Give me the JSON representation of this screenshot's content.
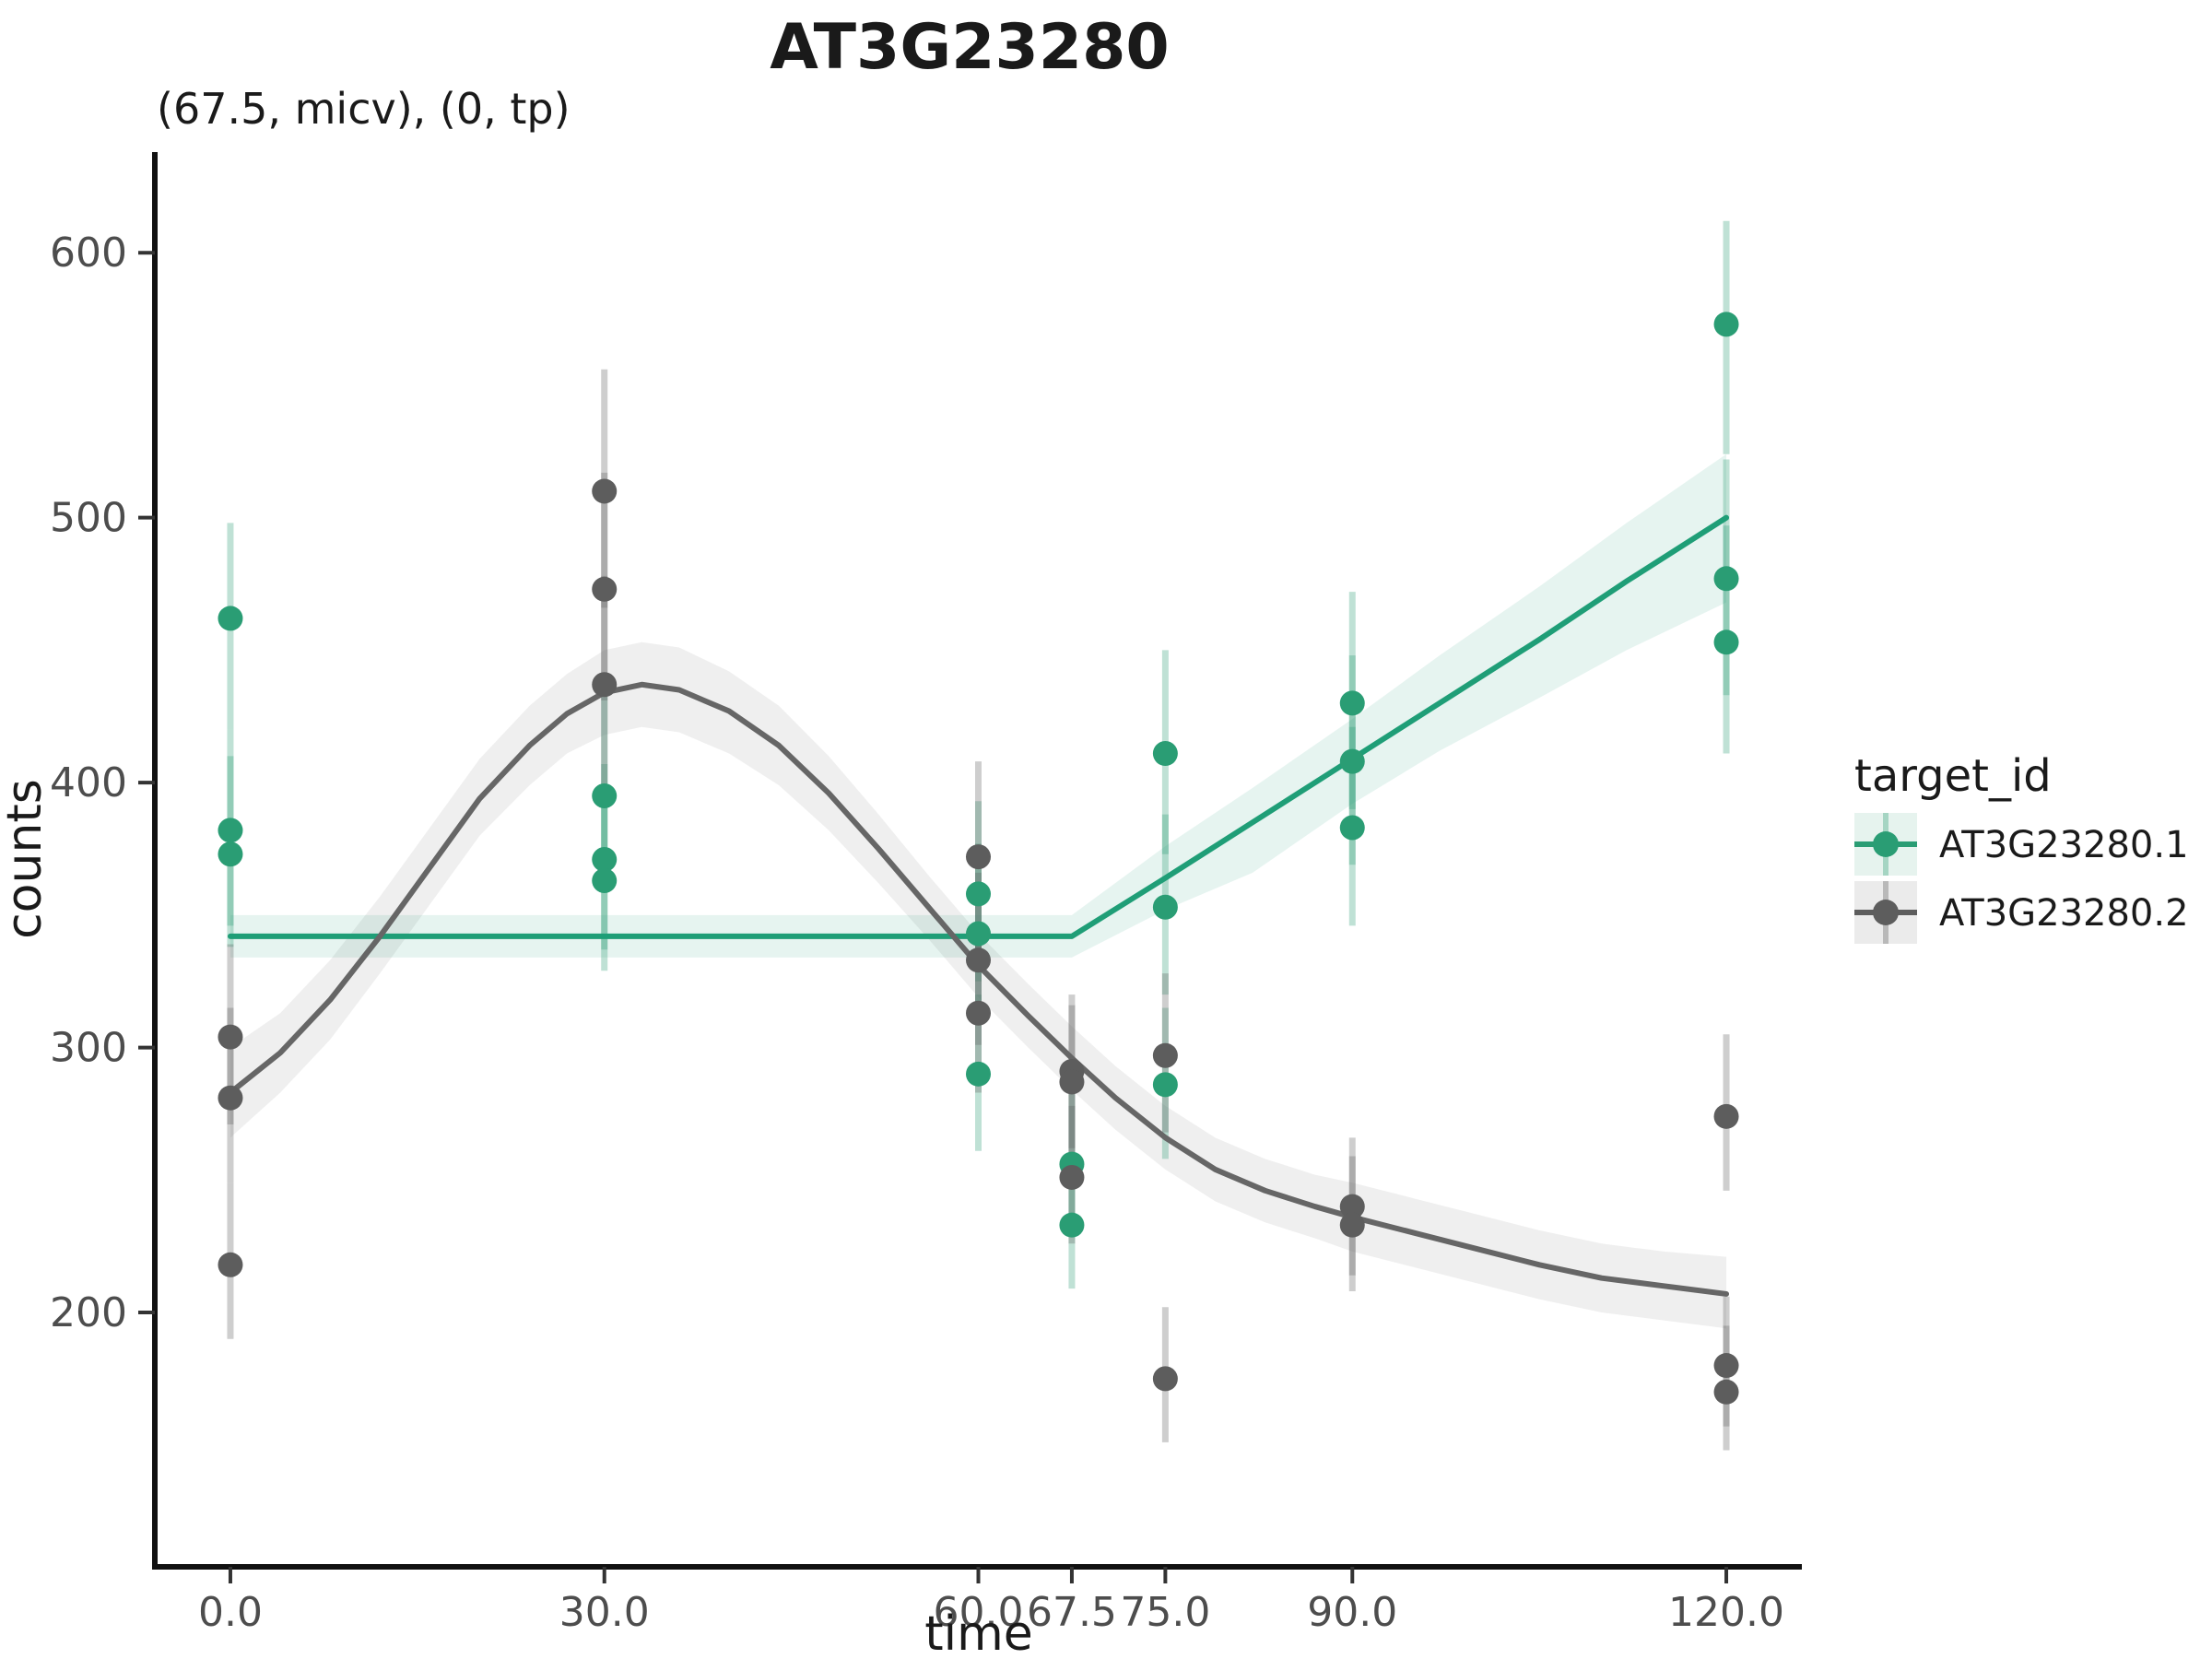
{
  "figure": {
    "background": "#ffffff"
  },
  "legend": {
    "title": "target_id",
    "entries": [
      {
        "label": "AT3G23280.1",
        "color": "#2a9d74",
        "bg": "#e6f3ee"
      },
      {
        "label": "AT3G23280.2",
        "color": "#5d5d5d",
        "bg": "#ebebeb"
      }
    ]
  },
  "chart_data": {
    "type": "scatter",
    "title": "AT3G23280",
    "subtitle": "(67.5, micv), (0, tp)",
    "xlabel": "time",
    "ylabel": "counts",
    "grid": false,
    "legend_position": "right",
    "legend_title": "target_id",
    "xlim": [
      -6.06,
      126.06
    ],
    "ylim": [
      104,
      638
    ],
    "x_ticks": [
      {
        "v": 0,
        "label": "0.0"
      },
      {
        "v": 30,
        "label": "30.0"
      },
      {
        "v": 60,
        "label": "60.0"
      },
      {
        "v": 67.5,
        "label": "67.5"
      },
      {
        "v": 75,
        "label": "75.0"
      },
      {
        "v": 90,
        "label": "90.0"
      },
      {
        "v": 120,
        "label": "120.0"
      }
    ],
    "y_ticks": [
      {
        "v": 200,
        "label": "200"
      },
      {
        "v": 300,
        "label": "300"
      },
      {
        "v": 400,
        "label": "400"
      },
      {
        "v": 500,
        "label": "500"
      },
      {
        "v": 600,
        "label": "600"
      }
    ],
    "series": [
      {
        "name": "AT3G23280.1",
        "color": "#2a9d74",
        "line_color": "#1f9e77",
        "ribbon_opacity": 0.11,
        "bar_opacity": 0.3,
        "points": [
          {
            "x": 0,
            "y": 462,
            "lo": 420,
            "hi": 498
          },
          {
            "x": 0,
            "y": 382,
            "lo": 346,
            "hi": 420
          },
          {
            "x": 0,
            "y": 373,
            "lo": 338,
            "hi": 410
          },
          {
            "x": 30,
            "y": 395,
            "lo": 359,
            "hi": 433
          },
          {
            "x": 30,
            "y": 371,
            "lo": 337,
            "hi": 407
          },
          {
            "x": 30,
            "y": 363,
            "lo": 329,
            "hi": 399
          },
          {
            "x": 60,
            "y": 358,
            "lo": 325,
            "hi": 393
          },
          {
            "x": 60,
            "y": 343,
            "lo": 311,
            "hi": 377
          },
          {
            "x": 60,
            "y": 290,
            "lo": 261,
            "hi": 320
          },
          {
            "x": 67.5,
            "y": 256,
            "lo": 230,
            "hi": 283
          },
          {
            "x": 67.5,
            "y": 233,
            "lo": 209,
            "hi": 258
          },
          {
            "x": 75,
            "y": 411,
            "lo": 373,
            "hi": 450
          },
          {
            "x": 75,
            "y": 353,
            "lo": 320,
            "hi": 388
          },
          {
            "x": 75,
            "y": 286,
            "lo": 258,
            "hi": 315
          },
          {
            "x": 90,
            "y": 430,
            "lo": 390,
            "hi": 472
          },
          {
            "x": 90,
            "y": 408,
            "lo": 369,
            "hi": 448
          },
          {
            "x": 90,
            "y": 383,
            "lo": 346,
            "hi": 421
          },
          {
            "x": 120,
            "y": 573,
            "lo": 524,
            "hi": 612
          },
          {
            "x": 120,
            "y": 477,
            "lo": 433,
            "hi": 522
          },
          {
            "x": 120,
            "y": 453,
            "lo": 411,
            "hi": 497
          }
        ],
        "trend": [
          [
            0,
            342
          ],
          [
            67.5,
            342
          ],
          [
            75,
            364
          ],
          [
            82,
            385
          ],
          [
            90,
            409
          ],
          [
            97,
            430
          ],
          [
            105,
            454
          ],
          [
            112,
            476
          ],
          [
            120,
            500
          ]
        ],
        "ribbon": [
          [
            0,
            334,
            350
          ],
          [
            67.5,
            334,
            350
          ],
          [
            75,
            352,
            376
          ],
          [
            82,
            366,
            398
          ],
          [
            90,
            392,
            424
          ],
          [
            97,
            412,
            448
          ],
          [
            105,
            432,
            474
          ],
          [
            112,
            450,
            498
          ],
          [
            120,
            468,
            524
          ]
        ]
      },
      {
        "name": "AT3G23280.2",
        "color": "#5d5d5d",
        "line_color": "#666666",
        "ribbon_opacity": 0.1,
        "bar_opacity": 0.3,
        "points": [
          {
            "x": 0,
            "y": 304,
            "lo": 271,
            "hi": 339
          },
          {
            "x": 0,
            "y": 281,
            "lo": 249,
            "hi": 315
          },
          {
            "x": 0,
            "y": 218,
            "lo": 190,
            "hi": 249
          },
          {
            "x": 30,
            "y": 510,
            "lo": 466,
            "hi": 556
          },
          {
            "x": 30,
            "y": 473,
            "lo": 431,
            "hi": 517
          },
          {
            "x": 30,
            "y": 437,
            "lo": 397,
            "hi": 478
          },
          {
            "x": 60,
            "y": 372,
            "lo": 337,
            "hi": 408
          },
          {
            "x": 60,
            "y": 333,
            "lo": 301,
            "hi": 366
          },
          {
            "x": 60,
            "y": 313,
            "lo": 283,
            "hi": 345
          },
          {
            "x": 67.5,
            "y": 291,
            "lo": 262,
            "hi": 320
          },
          {
            "x": 67.5,
            "y": 287,
            "lo": 258,
            "hi": 316
          },
          {
            "x": 67.5,
            "y": 251,
            "lo": 226,
            "hi": 278
          },
          {
            "x": 75,
            "y": 297,
            "lo": 268,
            "hi": 328
          },
          {
            "x": 75,
            "y": 175,
            "lo": 151,
            "hi": 202
          },
          {
            "x": 90,
            "y": 240,
            "lo": 214,
            "hi": 266
          },
          {
            "x": 90,
            "y": 233,
            "lo": 208,
            "hi": 259
          },
          {
            "x": 120,
            "y": 274,
            "lo": 246,
            "hi": 305
          },
          {
            "x": 120,
            "y": 180,
            "lo": 157,
            "hi": 206
          },
          {
            "x": 120,
            "y": 170,
            "lo": 148,
            "hi": 195
          }
        ],
        "trend": [
          [
            0,
            283
          ],
          [
            4,
            298
          ],
          [
            8,
            318
          ],
          [
            12,
            342
          ],
          [
            16,
            368
          ],
          [
            20,
            394
          ],
          [
            24,
            414
          ],
          [
            27,
            426
          ],
          [
            30,
            434
          ],
          [
            33,
            437
          ],
          [
            36,
            435
          ],
          [
            40,
            427
          ],
          [
            44,
            414
          ],
          [
            48,
            396
          ],
          [
            52,
            375
          ],
          [
            56,
            353
          ],
          [
            60,
            331
          ],
          [
            64,
            312
          ],
          [
            67.5,
            296
          ],
          [
            71,
            281
          ],
          [
            75,
            266
          ],
          [
            79,
            254
          ],
          [
            83,
            246
          ],
          [
            87,
            240
          ],
          [
            90,
            236
          ],
          [
            95,
            230
          ],
          [
            100,
            224
          ],
          [
            105,
            218
          ],
          [
            110,
            213
          ],
          [
            115,
            210
          ],
          [
            120,
            207
          ]
        ],
        "ribbon": [
          [
            0,
            266,
            300
          ],
          [
            4,
            283,
            313
          ],
          [
            8,
            303,
            333
          ],
          [
            12,
            328,
            357
          ],
          [
            16,
            354,
            383
          ],
          [
            20,
            380,
            409
          ],
          [
            24,
            399,
            429
          ],
          [
            27,
            411,
            441
          ],
          [
            30,
            418,
            450
          ],
          [
            33,
            421,
            453
          ],
          [
            36,
            419,
            451
          ],
          [
            40,
            411,
            442
          ],
          [
            44,
            399,
            429
          ],
          [
            48,
            382,
            410
          ],
          [
            52,
            362,
            388
          ],
          [
            56,
            341,
            365
          ],
          [
            60,
            319,
            343
          ],
          [
            64,
            300,
            324
          ],
          [
            67.5,
            284,
            308
          ],
          [
            71,
            269,
            293
          ],
          [
            75,
            254,
            278
          ],
          [
            79,
            242,
            266
          ],
          [
            83,
            234,
            258
          ],
          [
            87,
            228,
            252
          ],
          [
            90,
            223,
            249
          ],
          [
            95,
            217,
            243
          ],
          [
            100,
            211,
            237
          ],
          [
            105,
            205,
            231
          ],
          [
            110,
            200,
            226
          ],
          [
            115,
            197,
            223
          ],
          [
            120,
            194,
            221
          ]
        ]
      }
    ]
  }
}
